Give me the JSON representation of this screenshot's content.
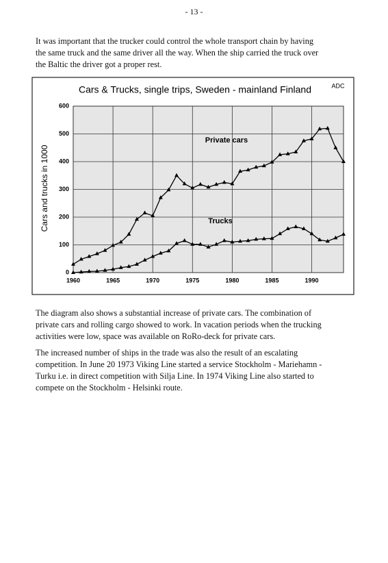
{
  "header": {
    "page_number": "- 13 -"
  },
  "paragraphs": [
    [
      "It was important that the trucker could control the whole transport chain by having",
      "the same truck and the same driver all the way. When the ship carried the truck over",
      "the Baltic the driver got a proper rest."
    ],
    [
      "The diagram also shows a substantial increase of private cars. The combination of",
      "private cars and rolling cargo showed to work. In vacation periods when the trucking",
      "activities were low, space was available on RoRo-deck for private cars."
    ],
    [
      "The increased number of ships in the trade was also the result of an escalating",
      "competition. In June 20 1973 Viking Line started a service Stockholm - Mariehamn -",
      "Turku i.e. in direct competition with Silja Line. In 1974 Viking Line also started to",
      "compete on the Stockholm - Helsinki route."
    ]
  ],
  "chart_data": {
    "type": "line",
    "title": "Cars & Trucks, single trips, Sweden - mainland Finland",
    "y_label": "Cars and trucks in 1000",
    "annotations": [
      "ADC",
      "Private cars",
      "Trucks"
    ],
    "x": [
      1960,
      1961,
      1962,
      1963,
      1964,
      1965,
      1966,
      1967,
      1968,
      1969,
      1970,
      1971,
      1972,
      1973,
      1974,
      1975,
      1976,
      1977,
      1978,
      1979,
      1980,
      1981,
      1982,
      1983,
      1984,
      1985,
      1986,
      1987,
      1988,
      1989,
      1990,
      1991,
      1992,
      1993,
      1994
    ],
    "series": [
      {
        "name": "Private cars",
        "color": "#000000",
        "values": [
          30,
          48,
          58,
          68,
          80,
          98,
          110,
          138,
          192,
          215,
          205,
          270,
          298,
          350,
          320,
          305,
          318,
          308,
          318,
          325,
          320,
          365,
          370,
          380,
          385,
          398,
          425,
          428,
          435,
          475,
          482,
          518,
          520,
          450,
          400
        ]
      },
      {
        "name": "Trucks",
        "color": "#000000",
        "values": [
          0,
          2,
          4,
          5,
          8,
          12,
          18,
          22,
          30,
          45,
          58,
          70,
          78,
          105,
          115,
          102,
          102,
          92,
          102,
          115,
          110,
          113,
          115,
          120,
          122,
          123,
          140,
          158,
          165,
          158,
          140,
          118,
          113,
          125,
          138
        ]
      }
    ],
    "xlim": [
      1960,
      1994
    ],
    "xticks": [
      1960,
      1965,
      1970,
      1975,
      1980,
      1985,
      1990
    ],
    "ylim": [
      0,
      600
    ],
    "yticks": [
      0,
      100,
      200,
      300,
      400,
      500,
      600
    ],
    "grid": true
  }
}
